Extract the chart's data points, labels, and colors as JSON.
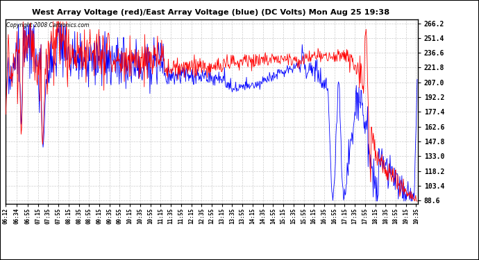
{
  "title": "West Array Voltage (red)/East Array Voltage (blue) (DC Volts) Mon Aug 25 19:38",
  "copyright": "Copyright 2008 Cartronics.com",
  "bg_color": "#ffffff",
  "grid_color": "#cccccc",
  "red_color": "#ff0000",
  "blue_color": "#0000ff",
  "yticks": [
    88.6,
    103.4,
    118.2,
    133.0,
    147.8,
    162.6,
    177.4,
    192.2,
    207.0,
    221.8,
    236.6,
    251.4,
    266.2
  ],
  "ylim": [
    85.0,
    270.0
  ],
  "xtick_labels": [
    "06:12",
    "06:34",
    "06:55",
    "07:15",
    "07:35",
    "07:55",
    "08:15",
    "08:35",
    "08:55",
    "09:15",
    "09:35",
    "09:55",
    "10:15",
    "10:35",
    "10:55",
    "11:15",
    "11:35",
    "11:55",
    "12:15",
    "12:35",
    "12:55",
    "13:15",
    "13:35",
    "13:55",
    "14:15",
    "14:35",
    "14:55",
    "15:15",
    "15:35",
    "15:55",
    "16:15",
    "16:35",
    "16:55",
    "17:15",
    "17:35",
    "17:55",
    "18:15",
    "18:35",
    "18:55",
    "19:15",
    "19:35"
  ]
}
